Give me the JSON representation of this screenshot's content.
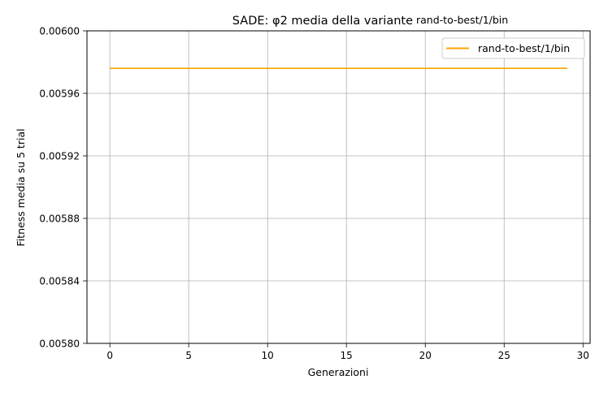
{
  "chart_data": {
    "type": "line",
    "title_main": "SADE: φ2 media della variante",
    "title_suffix": "rand-to-best/1/bin",
    "xlabel": "Generazioni",
    "ylabel": "Fitness media su 5 trial",
    "xlim": [
      -1.45,
      30.45
    ],
    "ylim": [
      0.0058,
      0.006
    ],
    "xticks": [
      0,
      5,
      10,
      15,
      20,
      25,
      30
    ],
    "xtick_labels": [
      "0",
      "5",
      "10",
      "15",
      "20",
      "25",
      "30"
    ],
    "yticks": [
      0.0058,
      0.00584,
      0.00588,
      0.00592,
      0.00596,
      0.006
    ],
    "ytick_labels": [
      "0.00580",
      "0.00584",
      "0.00588",
      "0.00592",
      "0.00596",
      "0.00600"
    ],
    "grid": true,
    "legend_position": "upper right",
    "series": [
      {
        "name": "rand-to-best/1/bin",
        "color": "#ffa500",
        "x": [
          0,
          1,
          2,
          3,
          4,
          5,
          6,
          7,
          8,
          9,
          10,
          11,
          12,
          13,
          14,
          15,
          16,
          17,
          18,
          19,
          20,
          21,
          22,
          23,
          24,
          25,
          26,
          27,
          28,
          29
        ],
        "y": [
          0.005976,
          0.005976,
          0.005976,
          0.005976,
          0.005976,
          0.005976,
          0.005976,
          0.005976,
          0.005976,
          0.005976,
          0.005976,
          0.005976,
          0.005976,
          0.005976,
          0.005976,
          0.005976,
          0.005976,
          0.005976,
          0.005976,
          0.005976,
          0.005976,
          0.005976,
          0.005976,
          0.005976,
          0.005976,
          0.005976,
          0.005976,
          0.005976,
          0.005976,
          0.005976
        ]
      }
    ]
  }
}
